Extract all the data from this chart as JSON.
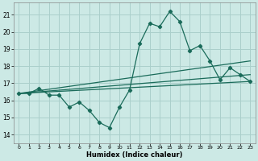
{
  "title": "",
  "xlabel": "Humidex (Indice chaleur)",
  "ylabel": "",
  "bg_color": "#cce9e5",
  "grid_color": "#aacfcb",
  "line_color": "#1a6b5a",
  "xlim": [
    -0.5,
    23.5
  ],
  "ylim": [
    13.5,
    21.7
  ],
  "xticks": [
    0,
    1,
    2,
    3,
    4,
    5,
    6,
    7,
    8,
    9,
    10,
    11,
    12,
    13,
    14,
    15,
    16,
    17,
    18,
    19,
    20,
    21,
    22,
    23
  ],
  "yticks": [
    14,
    15,
    16,
    17,
    18,
    19,
    20,
    21
  ],
  "main_line": {
    "x": [
      0,
      1,
      2,
      3,
      4,
      5,
      6,
      7,
      8,
      9,
      10,
      11,
      12,
      13,
      14,
      15,
      16,
      17,
      18,
      19,
      20,
      21,
      22,
      23
    ],
    "y": [
      16.4,
      16.4,
      16.7,
      16.3,
      16.3,
      15.6,
      15.9,
      15.4,
      14.7,
      14.4,
      15.6,
      16.6,
      19.3,
      20.5,
      20.3,
      21.2,
      20.6,
      18.9,
      19.2,
      18.3,
      17.2,
      17.9,
      17.5,
      17.1
    ]
  },
  "trend_line1": {
    "x": [
      0,
      23
    ],
    "y": [
      16.4,
      17.1
    ]
  },
  "trend_line2": {
    "x": [
      0,
      23
    ],
    "y": [
      16.4,
      18.3
    ]
  },
  "trend_line3": {
    "x": [
      0,
      23
    ],
    "y": [
      16.4,
      17.5
    ]
  }
}
